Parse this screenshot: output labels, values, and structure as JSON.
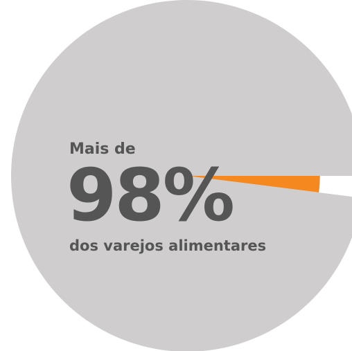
{
  "chart_data": {
    "type": "pie",
    "values": [
      2,
      98
    ],
    "value_labels": [
      null,
      "98%"
    ],
    "colors": [
      "#f5891f",
      "#cfcdcd"
    ],
    "annotations": [
      "Mais de",
      "dos varejos alimentares"
    ]
  }
}
